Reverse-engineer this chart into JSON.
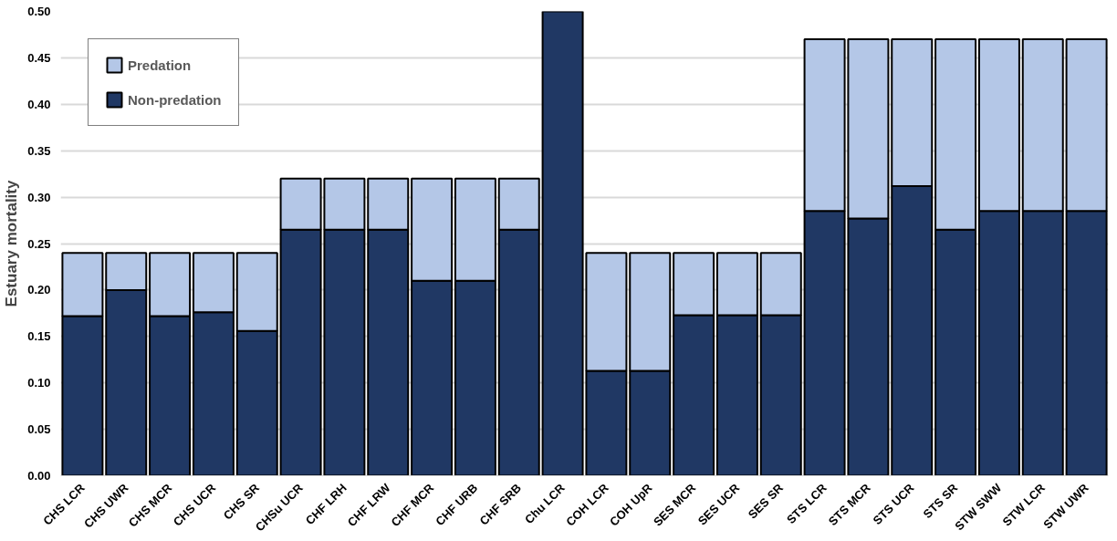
{
  "chart_data": {
    "type": "bar",
    "stacked": true,
    "ylabel": "Estuary mortality",
    "categories": [
      "CHS LCR",
      "CHS UWR",
      "CHS MCR",
      "CHS UCR",
      "CHS SR",
      "CHSu UCR",
      "CHF LRH",
      "CHF LRW",
      "CHF MCR",
      "CHF URB",
      "CHF SRB",
      "Chu LCR",
      "COH LCR",
      "COH UpR",
      "SES MCR",
      "SES UCR",
      "SES SR",
      "STS LCR",
      "STS MCR",
      "STS UCR",
      "STS SR",
      "STW SWW",
      "STW LCR",
      "STW UWR"
    ],
    "series": [
      {
        "name": "Non-predation",
        "color": "#203864",
        "values": [
          0.172,
          0.2,
          0.172,
          0.176,
          0.156,
          0.265,
          0.265,
          0.265,
          0.21,
          0.21,
          0.265,
          0.5,
          0.113,
          0.113,
          0.173,
          0.173,
          0.173,
          0.285,
          0.277,
          0.312,
          0.265,
          0.285,
          0.285,
          0.285
        ]
      },
      {
        "name": "Predation",
        "color": "#b4c7e7",
        "values": [
          0.068,
          0.04,
          0.068,
          0.064,
          0.084,
          0.055,
          0.055,
          0.055,
          0.11,
          0.11,
          0.055,
          0,
          0.127,
          0.127,
          0.067,
          0.067,
          0.067,
          0.185,
          0.193,
          0.158,
          0.205,
          0.185,
          0.185,
          0.185
        ]
      }
    ],
    "ylim": [
      0,
      0.5
    ],
    "yticks": [
      {
        "value": 0,
        "label": "0.00"
      },
      {
        "value": 0.05,
        "label": "0.05"
      },
      {
        "value": 0.1,
        "label": "0.10"
      },
      {
        "value": 0.15,
        "label": "0.15"
      },
      {
        "value": 0.2,
        "label": "0.20"
      },
      {
        "value": 0.25,
        "label": "0.25"
      },
      {
        "value": 0.3,
        "label": "0.30"
      },
      {
        "value": 0.35,
        "label": "0.35"
      },
      {
        "value": 0.4,
        "label": "0.40"
      },
      {
        "value": 0.45,
        "label": "0.45"
      },
      {
        "value": 0.5,
        "label": "0.50"
      }
    ],
    "grid": "y",
    "legend": "top left"
  }
}
